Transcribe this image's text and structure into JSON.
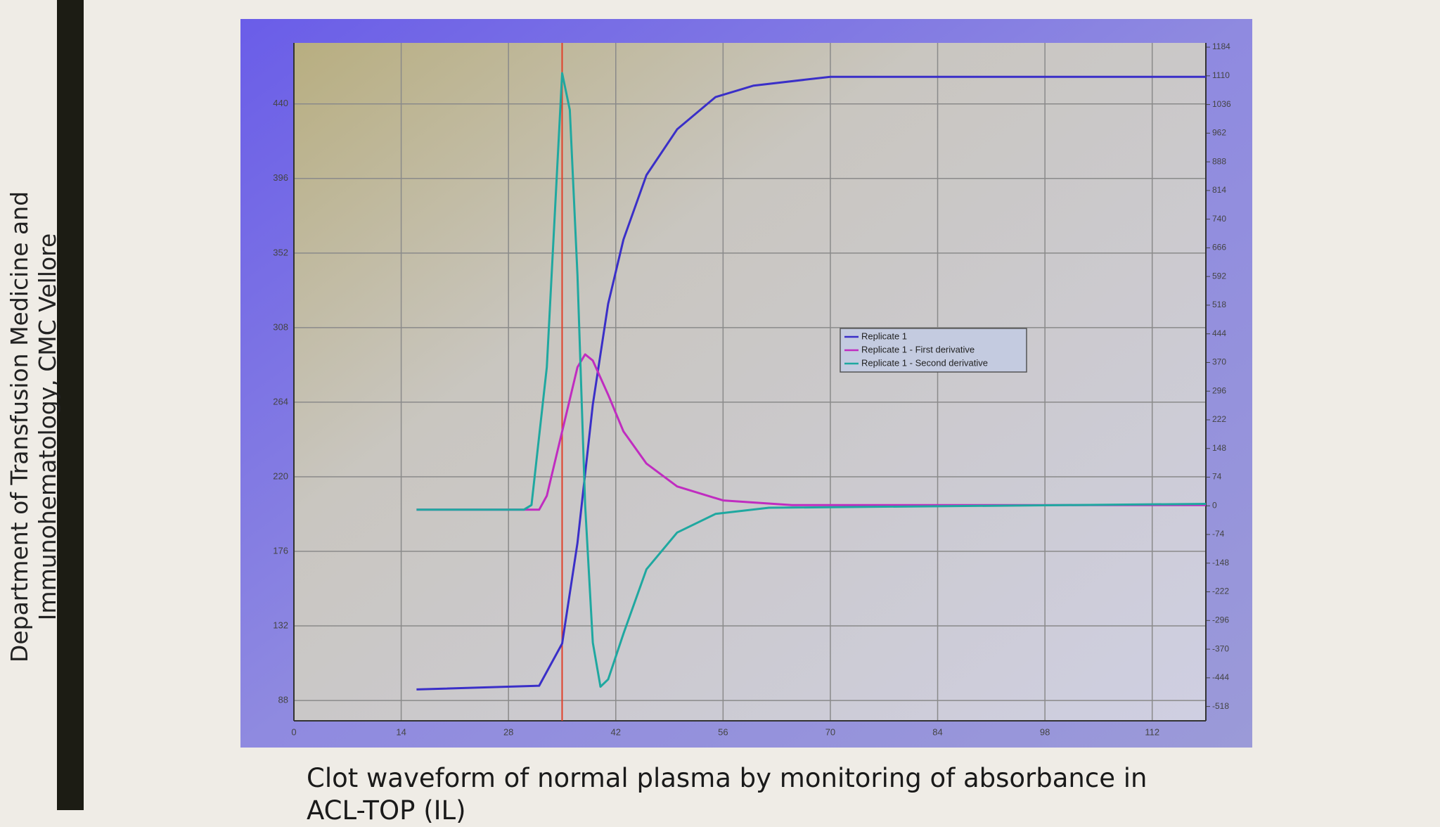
{
  "sidebar_text": "Department of Transfusion Medicine and Immunohematology, CMC Vellore",
  "caption": "Clot waveform of normal plasma by monitoring of absorbance in ACL-TOP (IL)",
  "chart_data": {
    "type": "line",
    "xlim": [
      0,
      119
    ],
    "xticks": [
      0,
      14,
      28,
      42,
      56,
      70,
      84,
      98,
      112
    ],
    "ylim": [
      76,
      476
    ],
    "yticks": [
      88,
      132,
      176,
      220,
      264,
      308,
      352,
      396,
      440
    ],
    "y2lim": [
      -555,
      1195
    ],
    "y2ticks": [
      -518,
      -444,
      -370,
      -296,
      -222,
      -148,
      -74,
      0,
      74,
      148,
      222,
      296,
      370,
      444,
      518,
      592,
      666,
      740,
      814,
      888,
      962,
      1036,
      1110,
      1184
    ],
    "grid": true,
    "legend": "center",
    "marker_x": 35,
    "marker_color": "#e0402a",
    "series": [
      {
        "name": "Replicate 1",
        "color": "#3a2fc8",
        "x": [
          16,
          32,
          35,
          37,
          39,
          41,
          43,
          46,
          50,
          55,
          60,
          70,
          119
        ],
        "values": [
          94.5,
          96.7,
          121.6,
          181,
          262.6,
          322,
          360,
          398,
          425,
          444,
          450.8,
          456,
          456
        ]
      },
      {
        "name": "Replicate 1 - First derivative",
        "color": "#c02cc0",
        "axis": "y2",
        "x": [
          16,
          32,
          33,
          35,
          37,
          38,
          39,
          41,
          43,
          46,
          50,
          56,
          65,
          119
        ],
        "values": [
          -10,
          -10,
          26,
          192,
          358,
          391,
          375,
          287,
          192,
          109,
          50,
          14,
          2,
          2
        ]
      },
      {
        "name": "Replicate 1 - Second derivative",
        "color": "#1fa8a0",
        "axis": "y2",
        "x": [
          16,
          30,
          31,
          33,
          35,
          36,
          37,
          38,
          39,
          40,
          41,
          43,
          46,
          50,
          55,
          62,
          119
        ],
        "values": [
          -10,
          -10,
          2,
          358,
          1117,
          1022,
          595,
          2,
          -353,
          -467,
          -448,
          -330,
          -164,
          -69,
          -21,
          -5,
          5
        ]
      }
    ]
  }
}
